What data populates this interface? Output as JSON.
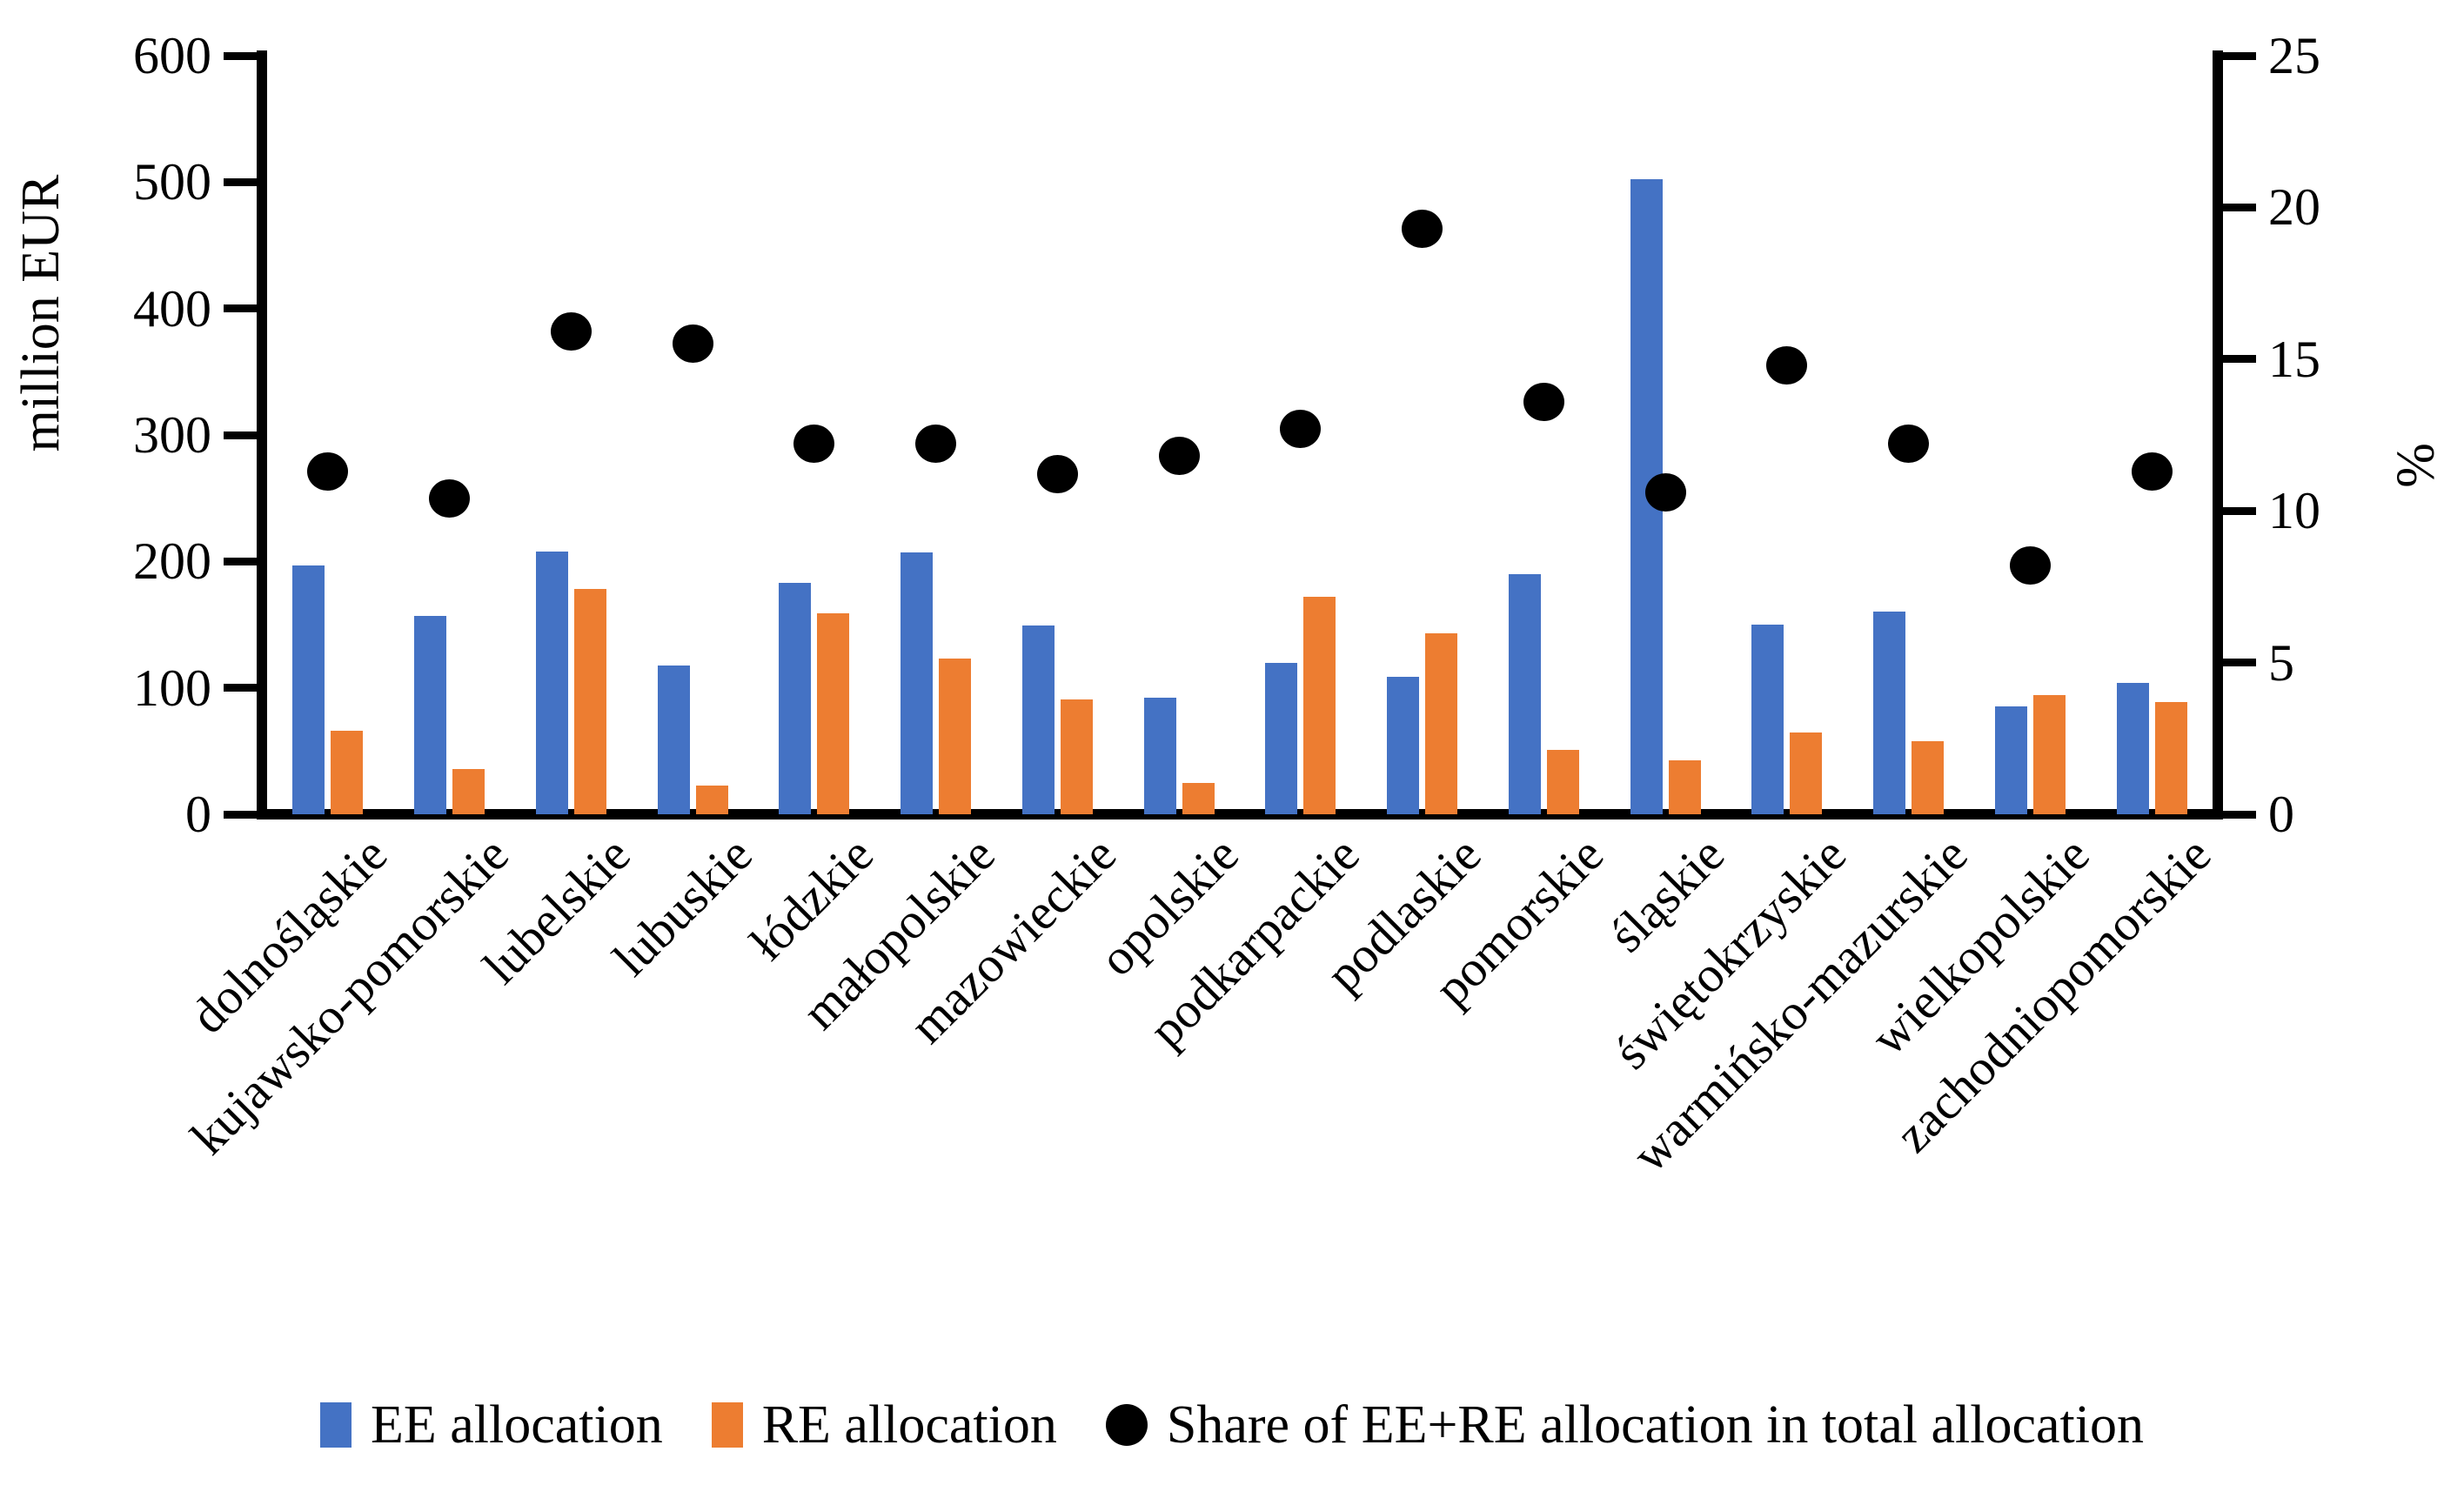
{
  "figure": {
    "background": "#ffffff",
    "left_axis_title": "million EUR",
    "right_axis_title": "%",
    "left_axis_ticks": [
      600,
      500,
      400,
      300,
      200,
      100,
      0
    ],
    "right_axis_ticks": [
      25,
      20,
      15,
      10,
      5,
      0
    ]
  },
  "legend": [
    {
      "label": "EE allocation",
      "marker": "bar",
      "color": "#4472C4"
    },
    {
      "label": "RE allocation",
      "marker": "bar",
      "color": "#ED7D31"
    },
    {
      "label": "Share of EE+RE allocation in total allocation",
      "marker": "dot",
      "color": "#000000"
    }
  ],
  "chart_data": {
    "type": "bar",
    "subtype": "clustered bars with secondary-axis scatter dots",
    "title": "",
    "xlabel": "",
    "ylabel_left": "million EUR",
    "ylabel_right": "%",
    "left_ylim": [
      0,
      600
    ],
    "right_ylim": [
      0,
      25
    ],
    "grid": false,
    "legend_position": "bottom",
    "categories": [
      "dolnośląskie",
      "kujawsko-pomorskie",
      "lubelskie",
      "lubuskie",
      "łódzkie",
      "małopolskie",
      "mazowieckie",
      "opolskie",
      "podkarpackie",
      "podlaskie",
      "pomorskie",
      "śląskie",
      "świętokrzyskie",
      "warmińsko-mazurskie",
      "wielkopolskie",
      "zachodniopomorskie"
    ],
    "series": [
      {
        "name": "EE allocation",
        "type": "bar",
        "axis": "left",
        "color": "#4472C4",
        "values": [
          197,
          157,
          208,
          118,
          183,
          207,
          149,
          92,
          120,
          109,
          190,
          502,
          150,
          160,
          85,
          104
        ]
      },
      {
        "name": "RE allocation",
        "type": "bar",
        "axis": "left",
        "color": "#ED7D31",
        "values": [
          66,
          36,
          178,
          23,
          159,
          123,
          91,
          25,
          172,
          143,
          51,
          43,
          65,
          58,
          94,
          89
        ]
      },
      {
        "name": "Share of EE+RE allocation in total allocation",
        "type": "scatter",
        "axis": "right",
        "color": "#000000",
        "values": [
          11.3,
          10.4,
          15.9,
          15.5,
          12.2,
          12.2,
          11.2,
          11.8,
          12.7,
          19.3,
          13.6,
          10.6,
          14.8,
          12.2,
          8.2,
          11.3
        ]
      }
    ]
  }
}
